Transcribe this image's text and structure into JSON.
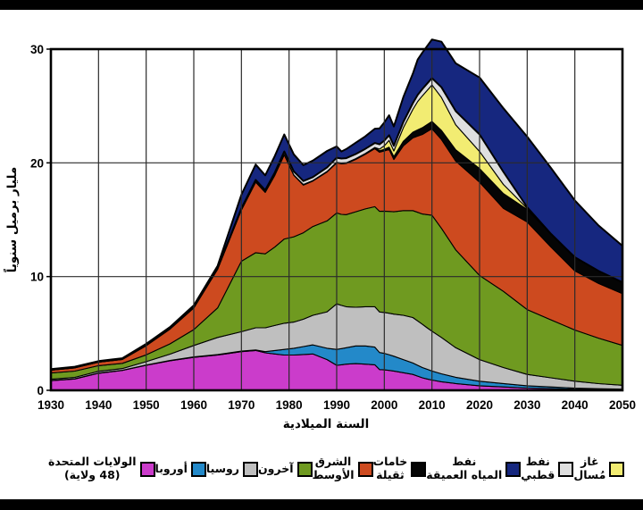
{
  "page": {
    "background": "#ffffff",
    "top_bar_color": "#000000",
    "bottom_bar_color": "#000000"
  },
  "chart_data": {
    "type": "area",
    "stacked": true,
    "title": "",
    "x_axis": {
      "title": "السنة الميلادية",
      "ticks": [
        1930,
        1940,
        1950,
        1960,
        1970,
        1980,
        1990,
        2000,
        2010,
        2020,
        2030,
        2040,
        2050
      ],
      "range": [
        1930,
        2050
      ]
    },
    "y_axis": {
      "title": "مليار برميل سنوياً",
      "ticks": [
        0,
        10,
        20,
        30
      ],
      "range": [
        0,
        30
      ]
    },
    "grid": true,
    "legend_position": "bottom",
    "frame_color": "#000000",
    "grid_color": "#2b2b2b",
    "years": [
      1930,
      1935,
      1940,
      1945,
      1950,
      1955,
      1960,
      1965,
      1970,
      1973,
      1975,
      1977,
      1979,
      1981,
      1983,
      1985,
      1988,
      1990,
      1991,
      1992,
      1994,
      1996,
      1998,
      1999,
      2000,
      2001,
      2002,
      2004,
      2006,
      2007,
      2008,
      2009,
      2010,
      2012,
      2015,
      2020,
      2025,
      2030,
      2035,
      2040,
      2045,
      2050
    ],
    "series": [
      {
        "key": "us48",
        "name_ar": "الولايات المتحدة (48 ولاية)",
        "name_en": "United States (48 states)",
        "color": "#CB3CCB",
        "values": [
          0.85,
          1.0,
          1.5,
          1.75,
          2.2,
          2.6,
          2.9,
          3.1,
          3.4,
          3.5,
          3.3,
          3.2,
          3.1,
          3.1,
          3.15,
          3.2,
          2.7,
          2.2,
          2.25,
          2.3,
          2.35,
          2.3,
          2.25,
          1.82,
          1.8,
          1.75,
          1.7,
          1.55,
          1.4,
          1.25,
          1.1,
          1.0,
          0.9,
          0.75,
          0.6,
          0.4,
          0.3,
          0.2,
          0.15,
          0.1,
          0.07,
          0.05
        ]
      },
      {
        "key": "europe",
        "name_ar": "أوروبا",
        "name_en": "Europe",
        "color": "#2389C9",
        "values": [
          0.02,
          0.02,
          0.02,
          0.02,
          0.02,
          0.03,
          0.04,
          0.05,
          0.05,
          0.05,
          0.1,
          0.3,
          0.5,
          0.6,
          0.7,
          0.8,
          1.0,
          1.4,
          1.42,
          1.45,
          1.55,
          1.6,
          1.55,
          1.5,
          1.45,
          1.38,
          1.3,
          1.15,
          1.0,
          0.95,
          0.9,
          0.85,
          0.8,
          0.7,
          0.55,
          0.4,
          0.3,
          0.2,
          0.15,
          0.1,
          0.07,
          0.05
        ]
      },
      {
        "key": "russia",
        "name_ar": "روسيا",
        "name_en": "Russia",
        "color": "#BFBFBF",
        "values": [
          0.1,
          0.12,
          0.15,
          0.15,
          0.3,
          0.55,
          1.0,
          1.5,
          1.7,
          1.95,
          2.1,
          2.2,
          2.3,
          2.3,
          2.4,
          2.6,
          3.2,
          4.0,
          3.8,
          3.6,
          3.4,
          3.45,
          3.55,
          3.57,
          3.6,
          3.65,
          3.7,
          3.9,
          4.0,
          3.9,
          3.8,
          3.65,
          3.5,
          3.2,
          2.6,
          1.9,
          1.4,
          1.0,
          0.8,
          0.6,
          0.45,
          0.35
        ]
      },
      {
        "key": "others",
        "name_ar": "آخرون",
        "name_en": "Others",
        "color": "#6F9A20",
        "values": [
          0.55,
          0.55,
          0.5,
          0.45,
          0.6,
          0.9,
          1.4,
          2.6,
          6.2,
          6.6,
          6.5,
          6.9,
          7.4,
          7.5,
          7.6,
          7.8,
          8.0,
          8.0,
          8.0,
          8.1,
          8.4,
          8.6,
          8.8,
          8.85,
          8.9,
          8.95,
          9.0,
          9.2,
          9.4,
          9.55,
          9.7,
          9.95,
          10.2,
          9.6,
          8.6,
          7.4,
          6.7,
          5.7,
          5.1,
          4.5,
          4.0,
          3.5
        ]
      },
      {
        "key": "middle_east",
        "name_ar": "الشرق الأوسط",
        "name_en": "Middle East",
        "color": "#CD4A1F",
        "values": [
          0.25,
          0.28,
          0.3,
          0.35,
          0.8,
          1.3,
          1.9,
          3.4,
          4.5,
          6.2,
          5.4,
          6.3,
          7.4,
          5.4,
          4.2,
          4.0,
          4.3,
          4.4,
          4.45,
          4.5,
          4.6,
          4.8,
          5.1,
          5.2,
          5.3,
          5.45,
          4.6,
          5.7,
          6.4,
          6.7,
          7.0,
          7.3,
          7.6,
          7.8,
          7.8,
          8.2,
          7.3,
          7.7,
          6.4,
          5.2,
          4.8,
          4.55
        ]
      },
      {
        "key": "heavy_oil",
        "name_ar": "خامات ثقيلة",
        "name_en": "Heavy oil",
        "color": "#050505",
        "values": [
          0.02,
          0.02,
          0.02,
          0.02,
          0.03,
          0.03,
          0.04,
          0.05,
          0.05,
          0.05,
          0.05,
          0.05,
          0.05,
          0.05,
          0.05,
          0.05,
          0.05,
          0.05,
          0.06,
          0.06,
          0.07,
          0.08,
          0.1,
          0.12,
          0.15,
          0.2,
          0.25,
          0.4,
          0.5,
          0.55,
          0.6,
          0.62,
          0.65,
          0.8,
          1.0,
          1.2,
          1.3,
          1.1,
          1.15,
          1.2,
          1.1,
          1.0
        ]
      },
      {
        "key": "lng",
        "name_ar": "غاز مُسال",
        "name_en": "Liquefied gas",
        "color": "#F2EC72",
        "values": [
          0,
          0,
          0,
          0,
          0,
          0,
          0,
          0,
          0,
          0,
          0,
          0,
          0,
          0,
          0,
          0,
          0,
          0,
          0,
          0,
          0,
          0,
          0,
          0.15,
          0.3,
          0.6,
          0.5,
          1.2,
          2.0,
          2.5,
          2.8,
          3.0,
          3.2,
          2.9,
          2.2,
          1.5,
          0.8,
          0.1,
          0,
          0,
          0,
          0
        ]
      },
      {
        "key": "polar",
        "name_ar": "نفط قطبي",
        "name_en": "Polar oil",
        "color": "#DFDFDF",
        "values": [
          0.02,
          0.02,
          0.02,
          0.02,
          0.03,
          0.03,
          0.04,
          0.05,
          0.1,
          0.15,
          0.15,
          0.2,
          0.25,
          0.3,
          0.3,
          0.3,
          0.35,
          0.4,
          0.4,
          0.4,
          0.4,
          0.4,
          0.4,
          0.42,
          0.45,
          0.45,
          0.45,
          0.5,
          0.55,
          0.58,
          0.6,
          0.6,
          0.6,
          0.9,
          1.2,
          1.5,
          1.1,
          0.1,
          0,
          0,
          0,
          0
        ]
      },
      {
        "key": "deepwater",
        "name_ar": "نفط المياه العميقة",
        "name_en": "Deepwater oil",
        "color": "#16277F",
        "values": [
          0.06,
          0.06,
          0.06,
          0.06,
          0.1,
          0.12,
          0.15,
          0.2,
          1.2,
          1.35,
          1.3,
          1.45,
          1.5,
          1.5,
          1.4,
          1.45,
          1.45,
          1.0,
          0.62,
          0.8,
          1.0,
          1.1,
          1.25,
          1.4,
          1.6,
          1.75,
          1.7,
          2.2,
          2.6,
          3.1,
          3.2,
          3.3,
          3.4,
          4.0,
          4.2,
          5.0,
          5.6,
          6.2,
          5.8,
          5.0,
          4.0,
          3.2
        ]
      }
    ]
  },
  "legend": {
    "items": [
      {
        "series": "us48",
        "color": "#CB3CCB",
        "label_lines": [
          "الولايات المتحدة",
          "(48 ولاية)"
        ]
      },
      {
        "series": "europe",
        "color": "#2389C9",
        "label_lines": [
          "أوروبا"
        ]
      },
      {
        "series": "russia",
        "color": "#BFBFBF",
        "label_lines": [
          "روسيا"
        ]
      },
      {
        "series": "others",
        "color": "#6F9A20",
        "label_lines": [
          "آخرون"
        ]
      },
      {
        "series": "middle_east",
        "color": "#CD4A1F",
        "label_lines": [
          "الشرق",
          "الأوسط"
        ]
      },
      {
        "series": "heavy_oil",
        "color": "#050505",
        "label_lines": [
          "خامات",
          "ثقيلة"
        ]
      },
      {
        "series": "deepwater",
        "color": "#16277F",
        "label_lines": [
          "نفط",
          "المياه العميقة"
        ]
      },
      {
        "series": "polar",
        "color": "#DFDFDF",
        "label_lines": [
          "نفط",
          "قطبي"
        ]
      },
      {
        "series": "lng",
        "color": "#F2EC72",
        "label_lines": [
          "غاز",
          "مُسال"
        ]
      }
    ]
  }
}
